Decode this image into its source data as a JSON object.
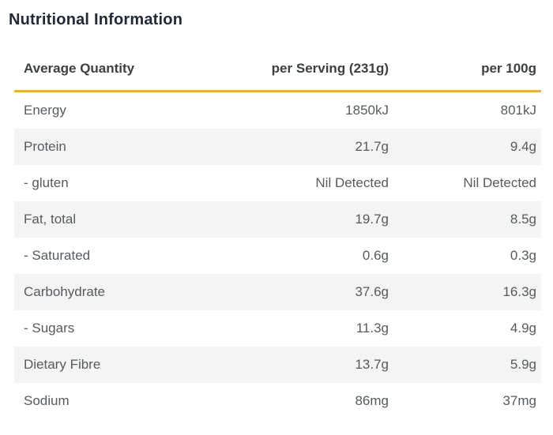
{
  "title": "Nutritional Information",
  "table": {
    "headers": [
      "Average Quantity",
      "per Serving (231g)",
      "per 100g"
    ],
    "rows": [
      {
        "label": "Energy",
        "per_serving": "1850kJ",
        "per_100g": "801kJ"
      },
      {
        "label": "Protein",
        "per_serving": "21.7g",
        "per_100g": "9.4g"
      },
      {
        "label": "- gluten",
        "per_serving": "Nil Detected",
        "per_100g": "Nil Detected"
      },
      {
        "label": "Fat, total",
        "per_serving": "19.7g",
        "per_100g": "8.5g"
      },
      {
        "label": "- Saturated",
        "per_serving": "0.6g",
        "per_100g": "0.3g"
      },
      {
        "label": "Carbohydrate",
        "per_serving": "37.6g",
        "per_100g": "16.3g"
      },
      {
        "label": "- Sugars",
        "per_serving": "11.3g",
        "per_100g": "4.9g"
      },
      {
        "label": "Dietary Fibre",
        "per_serving": "13.7g",
        "per_100g": "5.9g"
      },
      {
        "label": "Sodium",
        "per_serving": "86mg",
        "per_100g": "37mg"
      }
    ]
  },
  "colors": {
    "accent_divider": "#F0AD3F",
    "row_stripe": "#F4F4F4",
    "title_text": "#222A35",
    "header_text": "#3C4043",
    "body_text": "#565B60",
    "background": "#FFFFFF"
  }
}
